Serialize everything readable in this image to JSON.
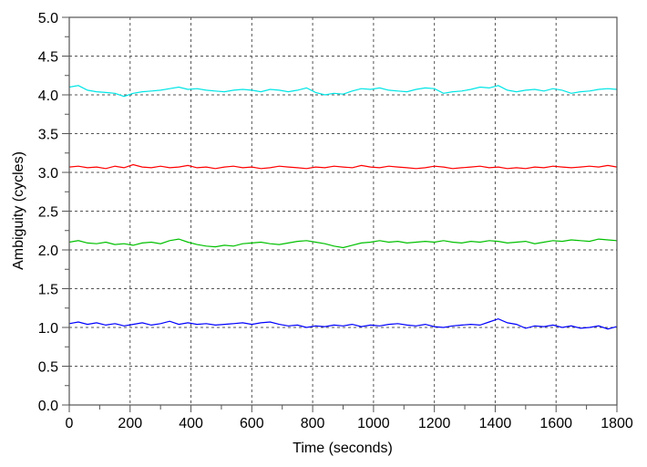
{
  "chart_data": {
    "type": "line",
    "title": "",
    "xlabel": "Time (seconds)",
    "ylabel": "Ambiguity (cycles)",
    "xlim": [
      0,
      1800
    ],
    "ylim": [
      0,
      5
    ],
    "xticks": [
      "0",
      "200",
      "400",
      "600",
      "800",
      "1000",
      "1200",
      "1400",
      "1600",
      "1800"
    ],
    "yticks": [
      "0.0",
      "0.5",
      "1.0",
      "1.5",
      "2.0",
      "2.5",
      "3.0",
      "3.5",
      "4.0",
      "4.5",
      "5.0"
    ],
    "grid": true,
    "x": [
      0,
      30,
      60,
      90,
      120,
      150,
      180,
      210,
      240,
      270,
      300,
      330,
      360,
      390,
      420,
      450,
      480,
      510,
      540,
      570,
      600,
      630,
      660,
      690,
      720,
      750,
      780,
      810,
      840,
      870,
      900,
      930,
      960,
      990,
      1020,
      1050,
      1080,
      1110,
      1140,
      1170,
      1200,
      1230,
      1260,
      1290,
      1320,
      1350,
      1380,
      1410,
      1440,
      1470,
      1500,
      1530,
      1560,
      1590,
      1620,
      1650,
      1680,
      1710,
      1740,
      1770,
      1800
    ],
    "series": [
      {
        "color": "#00e5e5",
        "values": [
          4.1,
          4.12,
          4.06,
          4.04,
          4.03,
          4.02,
          3.98,
          4.02,
          4.04,
          4.05,
          4.06,
          4.08,
          4.1,
          4.07,
          4.08,
          4.06,
          4.05,
          4.04,
          4.06,
          4.07,
          4.06,
          4.04,
          4.07,
          4.06,
          4.04,
          4.06,
          4.09,
          4.03,
          4.0,
          4.02,
          4.01,
          4.05,
          4.08,
          4.07,
          4.09,
          4.06,
          4.05,
          4.04,
          4.07,
          4.09,
          4.08,
          4.02,
          4.04,
          4.05,
          4.07,
          4.1,
          4.09,
          4.12,
          4.06,
          4.04,
          4.06,
          4.07,
          4.05,
          4.08,
          4.06,
          4.02,
          4.04,
          4.05,
          4.07,
          4.08,
          4.07
        ]
      },
      {
        "color": "#ff0000",
        "values": [
          3.07,
          3.08,
          3.06,
          3.07,
          3.05,
          3.08,
          3.06,
          3.1,
          3.07,
          3.06,
          3.08,
          3.06,
          3.07,
          3.09,
          3.06,
          3.07,
          3.05,
          3.07,
          3.08,
          3.06,
          3.07,
          3.05,
          3.06,
          3.08,
          3.07,
          3.06,
          3.05,
          3.07,
          3.06,
          3.08,
          3.07,
          3.06,
          3.09,
          3.07,
          3.06,
          3.08,
          3.07,
          3.06,
          3.05,
          3.06,
          3.08,
          3.07,
          3.05,
          3.06,
          3.07,
          3.08,
          3.06,
          3.07,
          3.05,
          3.06,
          3.05,
          3.07,
          3.06,
          3.08,
          3.07,
          3.06,
          3.07,
          3.08,
          3.07,
          3.09,
          3.07
        ]
      },
      {
        "color": "#00c000",
        "values": [
          2.1,
          2.12,
          2.09,
          2.08,
          2.1,
          2.07,
          2.08,
          2.06,
          2.09,
          2.1,
          2.08,
          2.12,
          2.14,
          2.1,
          2.07,
          2.05,
          2.04,
          2.06,
          2.05,
          2.08,
          2.09,
          2.1,
          2.08,
          2.07,
          2.09,
          2.11,
          2.12,
          2.1,
          2.08,
          2.05,
          2.03,
          2.06,
          2.09,
          2.1,
          2.12,
          2.1,
          2.11,
          2.09,
          2.1,
          2.11,
          2.1,
          2.12,
          2.1,
          2.09,
          2.11,
          2.1,
          2.12,
          2.11,
          2.09,
          2.1,
          2.11,
          2.08,
          2.1,
          2.12,
          2.11,
          2.13,
          2.12,
          2.11,
          2.14,
          2.13,
          2.12
        ]
      },
      {
        "color": "#0000ff",
        "values": [
          1.05,
          1.07,
          1.04,
          1.06,
          1.03,
          1.05,
          1.02,
          1.04,
          1.06,
          1.03,
          1.05,
          1.08,
          1.04,
          1.06,
          1.04,
          1.05,
          1.03,
          1.04,
          1.05,
          1.06,
          1.04,
          1.06,
          1.07,
          1.04,
          1.02,
          1.03,
          1.0,
          1.02,
          1.01,
          1.03,
          1.02,
          1.04,
          1.01,
          1.03,
          1.02,
          1.04,
          1.05,
          1.03,
          1.02,
          1.04,
          1.01,
          1.0,
          1.02,
          1.03,
          1.04,
          1.03,
          1.07,
          1.11,
          1.06,
          1.04,
          0.99,
          1.02,
          1.01,
          1.03,
          1.0,
          1.02,
          0.99,
          1.0,
          1.02,
          0.98,
          1.01
        ]
      }
    ]
  }
}
